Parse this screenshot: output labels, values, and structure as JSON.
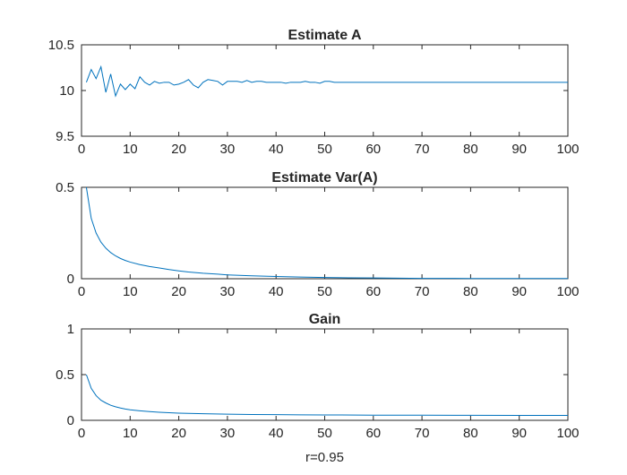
{
  "colors": {
    "series": "#0072bd",
    "axes": "#262626",
    "background": "#ffffff"
  },
  "chart_data": [
    {
      "type": "line",
      "title": "Estimate A",
      "xlabel": "",
      "ylabel": "",
      "xlim": [
        0,
        100
      ],
      "ylim": [
        9.5,
        10.5
      ],
      "xticks": [
        0,
        10,
        20,
        30,
        40,
        50,
        60,
        70,
        80,
        90,
        100
      ],
      "xtick_labels": [
        "0",
        "10",
        "20",
        "30",
        "40",
        "50",
        "60",
        "70",
        "80",
        "90",
        "100"
      ],
      "yticks": [
        9.5,
        10,
        10.5
      ],
      "ytick_labels": [
        "9.5",
        "10",
        "10.5"
      ],
      "grid": false,
      "series": [
        {
          "x": [
            1,
            2,
            3,
            4,
            5,
            6,
            7,
            8,
            9,
            10,
            11,
            12,
            13,
            14,
            15,
            16,
            17,
            18,
            19,
            20,
            21,
            22,
            23,
            24,
            25,
            26,
            27,
            28,
            29,
            30,
            31,
            32,
            33,
            34,
            35,
            36,
            37,
            38,
            39,
            40,
            41,
            42,
            43,
            44,
            45,
            46,
            47,
            48,
            49,
            50,
            51,
            52,
            53,
            54,
            55,
            56,
            57,
            58,
            59,
            60,
            61,
            62,
            63,
            64,
            65,
            66,
            67,
            68,
            69,
            70,
            71,
            72,
            73,
            74,
            75,
            76,
            77,
            78,
            79,
            80,
            81,
            82,
            83,
            84,
            85,
            86,
            87,
            88,
            89,
            90,
            91,
            92,
            93,
            94,
            95,
            96,
            97,
            98,
            99,
            100
          ],
          "y": [
            10.09,
            10.23,
            10.13,
            10.26,
            9.98,
            10.18,
            9.94,
            10.07,
            10.01,
            10.07,
            10.02,
            10.15,
            10.09,
            10.06,
            10.1,
            10.08,
            10.09,
            10.09,
            10.06,
            10.07,
            10.09,
            10.12,
            10.06,
            10.03,
            10.09,
            10.12,
            10.11,
            10.1,
            10.06,
            10.1,
            10.1,
            10.1,
            10.09,
            10.11,
            10.09,
            10.1,
            10.1,
            10.09,
            10.09,
            10.09,
            10.09,
            10.08,
            10.09,
            10.09,
            10.09,
            10.1,
            10.09,
            10.09,
            10.08,
            10.1,
            10.1,
            10.09,
            10.09,
            10.09,
            10.09,
            10.09,
            10.09,
            10.09,
            10.09,
            10.09,
            10.09,
            10.09,
            10.09,
            10.09,
            10.09,
            10.09,
            10.09,
            10.09,
            10.09,
            10.09,
            10.09,
            10.09,
            10.09,
            10.09,
            10.09,
            10.09,
            10.09,
            10.09,
            10.09,
            10.09,
            10.09,
            10.09,
            10.09,
            10.09,
            10.09,
            10.09,
            10.09,
            10.09,
            10.09,
            10.09,
            10.09,
            10.09,
            10.09,
            10.09,
            10.09,
            10.09,
            10.09,
            10.09,
            10.09,
            10.09
          ]
        }
      ]
    },
    {
      "type": "line",
      "title": "Estimate Var(A)",
      "xlabel": "",
      "ylabel": "",
      "xlim": [
        0,
        100
      ],
      "ylim": [
        0,
        0.5
      ],
      "xticks": [
        0,
        10,
        20,
        30,
        40,
        50,
        60,
        70,
        80,
        90,
        100
      ],
      "xtick_labels": [
        "0",
        "10",
        "20",
        "30",
        "40",
        "50",
        "60",
        "70",
        "80",
        "90",
        "100"
      ],
      "yticks": [
        0,
        0.5
      ],
      "ytick_labels": [
        "0",
        "0.5"
      ],
      "grid": false,
      "series": [
        {
          "x": [
            1,
            2,
            3,
            4,
            5,
            6,
            7,
            8,
            9,
            10,
            12,
            14,
            16,
            18,
            20,
            22,
            25,
            28,
            30,
            35,
            40,
            45,
            50,
            55,
            60,
            65,
            70,
            75,
            80,
            85,
            90,
            95,
            100
          ],
          "y": [
            0.5,
            0.33,
            0.25,
            0.2,
            0.167,
            0.143,
            0.125,
            0.111,
            0.1,
            0.091,
            0.077,
            0.067,
            0.059,
            0.05,
            0.043,
            0.037,
            0.03,
            0.025,
            0.021,
            0.016,
            0.012,
            0.009,
            0.007,
            0.005,
            0.004,
            0.003,
            0.002,
            0.002,
            0.001,
            0.001,
            0.001,
            0.001,
            0.001
          ]
        }
      ]
    },
    {
      "type": "line",
      "title": "Gain",
      "xlabel": "r=0.95",
      "ylabel": "",
      "xlim": [
        0,
        100
      ],
      "ylim": [
        0,
        1
      ],
      "xticks": [
        0,
        10,
        20,
        30,
        40,
        50,
        60,
        70,
        80,
        90,
        100
      ],
      "xtick_labels": [
        "0",
        "10",
        "20",
        "30",
        "40",
        "50",
        "60",
        "70",
        "80",
        "90",
        "100"
      ],
      "yticks": [
        0,
        0.5,
        1
      ],
      "ytick_labels": [
        "0",
        "0.5",
        "1"
      ],
      "grid": false,
      "series": [
        {
          "x": [
            1,
            2,
            3,
            4,
            5,
            6,
            7,
            8,
            9,
            10,
            12,
            14,
            16,
            18,
            20,
            25,
            30,
            35,
            40,
            45,
            50,
            60,
            70,
            80,
            90,
            100
          ],
          "y": [
            0.5,
            0.35,
            0.27,
            0.22,
            0.19,
            0.165,
            0.148,
            0.135,
            0.124,
            0.115,
            0.104,
            0.095,
            0.088,
            0.083,
            0.079,
            0.072,
            0.067,
            0.064,
            0.062,
            0.06,
            0.059,
            0.057,
            0.056,
            0.055,
            0.054,
            0.054
          ]
        }
      ]
    }
  ]
}
